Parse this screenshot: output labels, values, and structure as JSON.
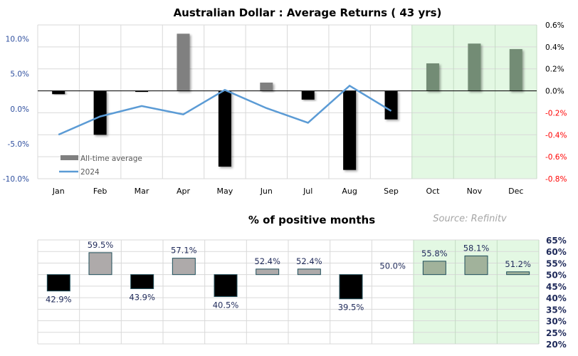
{
  "chart_data": [
    {
      "type": "bar+line",
      "title": "Australian Dollar : Average Returns ( 43 yrs)",
      "categories": [
        "Jan",
        "Feb",
        "Mar",
        "Apr",
        "May",
        "Jun",
        "Jul",
        "Aug",
        "Sep",
        "Oct",
        "Nov",
        "Dec"
      ],
      "series": [
        {
          "name": "All-time average",
          "type": "bar",
          "axis": "right",
          "values": [
            -0.03,
            -0.4,
            -0.01,
            0.52,
            -0.69,
            0.075,
            -0.08,
            -0.72,
            -0.26,
            0.25,
            0.43,
            0.38
          ]
        },
        {
          "name": "2024",
          "type": "line",
          "axis": "left",
          "values": [
            -3.7,
            -1.1,
            0.4,
            -0.8,
            2.7,
            0.1,
            -2.0,
            3.3,
            -0.3,
            null,
            null,
            null
          ]
        }
      ],
      "left_axis": {
        "range": [
          -10,
          12
        ],
        "ticks": [
          10,
          5,
          0,
          -5,
          -10
        ],
        "tick_labels": [
          "10.0%",
          "5.0%",
          "0.0%",
          "-5.0%",
          "-10.0%"
        ]
      },
      "right_axis": {
        "range": [
          -0.8,
          0.6
        ],
        "ticks": [
          0.6,
          0.4,
          0.2,
          0,
          -0.2,
          -0.4,
          -0.6,
          -0.8
        ],
        "tick_labels": [
          "0.6%",
          "0.4%",
          "0.2%",
          "0.0%",
          "-0.2%",
          "-0.4%",
          "-0.6%",
          "-0.8%"
        ]
      },
      "highlight_categories": [
        "Oct",
        "Nov",
        "Dec"
      ],
      "grid": true,
      "legend": "bottom-left",
      "colors": {
        "positive_bar": "#808080",
        "negative_bar": "#000000",
        "highlight_bar": "#738c74",
        "line": "#5b9bd5",
        "highlight_bg": "#e3f8e3",
        "axis_left": "#2f4f9f",
        "axis_right_pos": "#000000",
        "axis_right_neg": "#ff0000"
      }
    },
    {
      "type": "bar",
      "title": "% of positive months",
      "source": "Source: Refinitv",
      "categories": [
        "Jan",
        "Feb",
        "Mar",
        "Apr",
        "May",
        "Jun",
        "Jul",
        "Aug",
        "Sep",
        "Oct",
        "Nov",
        "Dec"
      ],
      "values": [
        42.9,
        59.5,
        43.9,
        57.1,
        40.5,
        52.4,
        52.4,
        39.5,
        50.0,
        55.8,
        58.1,
        51.2
      ],
      "data_labels": [
        "42.9%",
        "59.5%",
        "43.9%",
        "57.1%",
        "40.5%",
        "52.4%",
        "52.4%",
        "39.5%",
        "50.0%",
        "55.8%",
        "58.1%",
        "51.2%"
      ],
      "baseline": 50,
      "ylim": [
        20,
        65
      ],
      "tick_labels": [
        "65%",
        "60%",
        "55%",
        "50%",
        "45%",
        "40%",
        "35%",
        "30%",
        "25%",
        "20%"
      ],
      "grid": true,
      "colors": {
        "above": "#aeaaaa",
        "below": "#000000",
        "highlight": "#a1b29b",
        "outline": "#1f4e5a",
        "highlight_bg": "#e3f8e3",
        "label": "#1f2a5a",
        "axis": "#1f2a5a"
      }
    }
  ]
}
